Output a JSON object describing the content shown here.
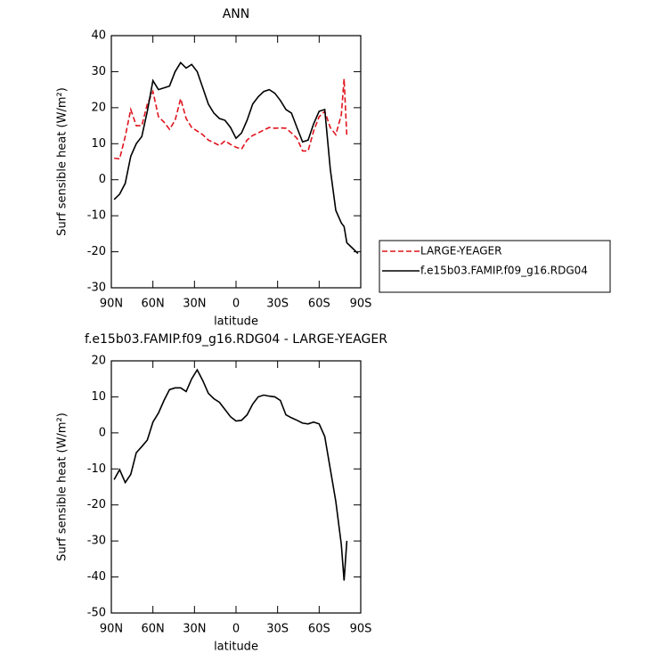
{
  "chart_data": [
    {
      "type": "line",
      "title": "ANN",
      "ylabel": "Surf sensible heat (W/m²)",
      "xlabel": "latitude",
      "x": [
        88,
        84,
        80,
        76,
        72,
        68,
        64,
        60,
        56,
        52,
        48,
        44,
        40,
        36,
        32,
        28,
        24,
        20,
        16,
        12,
        8,
        4,
        0,
        -4,
        -8,
        -12,
        -16,
        -20,
        -24,
        -28,
        -32,
        -36,
        -40,
        -44,
        -48,
        -52,
        -56,
        -60,
        -64,
        -68,
        -72,
        -76,
        -78,
        -80,
        -84,
        -88
      ],
      "series": [
        {
          "name": "LARGE-YEAGER",
          "color": "#e0141e",
          "dash": true,
          "values": [
            6,
            5.8,
            12,
            19.5,
            15,
            15,
            21,
            24.5,
            17.5,
            16,
            14,
            16.5,
            22.5,
            17,
            14.5,
            13.5,
            12.5,
            11,
            10.3,
            9.5,
            10.8,
            9.8,
            9,
            8.5,
            11,
            12.3,
            13,
            13.8,
            14.5,
            14.3,
            14.4,
            14.3,
            13,
            11.5,
            8,
            8,
            13.5,
            17.5,
            19,
            14.5,
            12.5,
            18,
            28,
            12,
            null,
            null
          ]
        },
        {
          "name": "f.e15b03.FAMIP.f09_g16.RDG04",
          "color": "#000000",
          "dash": false,
          "values": [
            -5.5,
            -4,
            -1,
            6.5,
            10,
            12,
            19,
            27.5,
            25,
            25.5,
            26,
            30,
            32.5,
            31,
            32,
            30,
            25.5,
            21,
            18.5,
            17,
            16.5,
            14.5,
            11.5,
            13,
            16.5,
            21,
            23,
            24.5,
            25,
            24,
            22,
            19.5,
            18.5,
            14.5,
            10.5,
            11,
            15.5,
            19,
            19.5,
            3,
            -8.5,
            -12,
            -13,
            -17.5,
            -19,
            -20.5
          ]
        }
      ],
      "xlim": [
        90,
        -90
      ],
      "xticks": [
        {
          "value": 90,
          "label": "90N"
        },
        {
          "value": 60,
          "label": "60N"
        },
        {
          "value": 30,
          "label": "30N"
        },
        0,
        {
          "value": -30,
          "label": "30S"
        },
        {
          "value": -60,
          "label": "60S"
        },
        {
          "value": -90,
          "label": "90S"
        }
      ],
      "ylim": [
        -30,
        40
      ],
      "yticks": [
        -30,
        -20,
        -10,
        0,
        10,
        20,
        30,
        40
      ],
      "legend": "right"
    },
    {
      "type": "line",
      "title": "f.e15b03.FAMIP.f09_g16.RDG04 - LARGE-YEAGER",
      "ylabel": "Surf sensible heat (W/m²)",
      "xlabel": "latitude",
      "x": [
        88,
        84,
        80,
        76,
        72,
        68,
        64,
        60,
        56,
        52,
        48,
        44,
        40,
        36,
        32,
        28,
        24,
        20,
        16,
        12,
        8,
        4,
        0,
        -4,
        -8,
        -12,
        -16,
        -20,
        -24,
        -28,
        -32,
        -36,
        -40,
        -44,
        -48,
        -52,
        -56,
        -60,
        -64,
        -68,
        -72,
        -76,
        -78,
        -80
      ],
      "series": [
        {
          "color": "#000000",
          "dash": false,
          "values": [
            -13,
            -10.2,
            -13.8,
            -11.5,
            -5.5,
            -3.8,
            -2,
            3,
            5.5,
            9,
            12,
            12.5,
            12.5,
            11.5,
            15,
            17.5,
            14.5,
            11,
            9.5,
            8.5,
            6.5,
            4.5,
            3.3,
            3.5,
            5,
            8,
            10,
            10.5,
            10.2,
            10,
            9,
            5,
            4.2,
            3.5,
            2.7,
            2.5,
            3,
            2.5,
            -1,
            -10,
            -19,
            -31,
            -41,
            -30
          ]
        }
      ],
      "xlim": [
        90,
        -90
      ],
      "xticks": [
        {
          "value": 90,
          "label": "90N"
        },
        {
          "value": 60,
          "label": "60N"
        },
        {
          "value": 30,
          "label": "30N"
        },
        0,
        {
          "value": -30,
          "label": "30S"
        },
        {
          "value": -60,
          "label": "60S"
        },
        {
          "value": -90,
          "label": "90S"
        }
      ],
      "ylim": [
        -50,
        20
      ],
      "yticks": [
        -50,
        -40,
        -30,
        -20,
        -10,
        0,
        10,
        20
      ]
    }
  ]
}
